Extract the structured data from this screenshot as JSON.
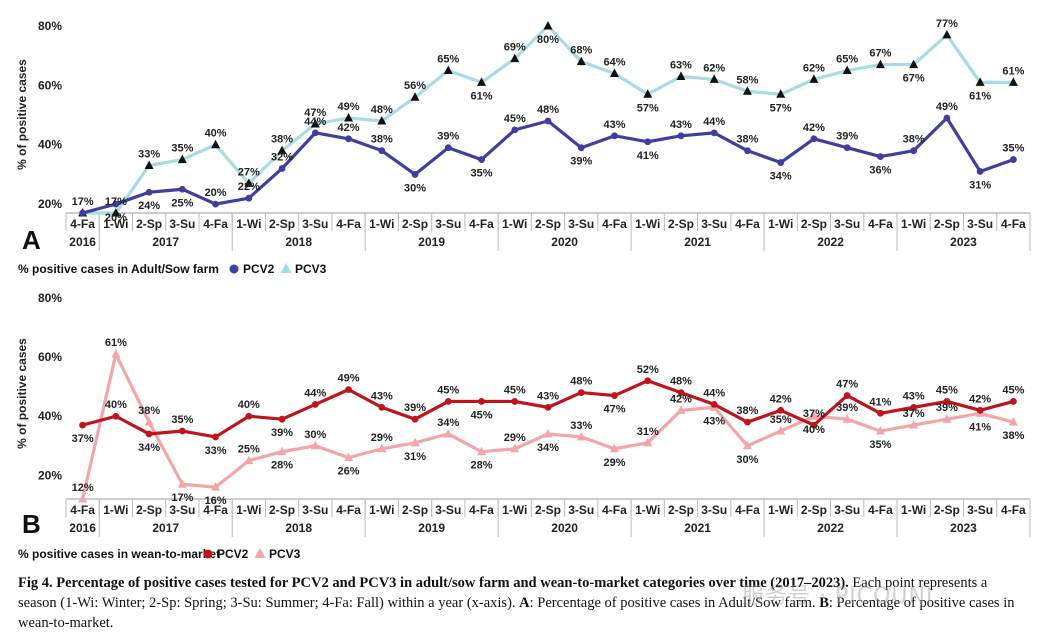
{
  "chart_data": [
    {
      "type": "line",
      "panel_label": "A",
      "title": "% positive cases in Adult/Sow farm",
      "ylabel": "% of positive cases",
      "ylim": [
        17,
        80
      ],
      "yticks": [
        "20%",
        "40%",
        "60%",
        "80%"
      ],
      "ytick_values": [
        20,
        40,
        60,
        80
      ],
      "categories": [
        "4-Fa",
        "1-Wi",
        "2-Sp",
        "3-Su",
        "4-Fa",
        "1-Wi",
        "2-Sp",
        "3-Su",
        "4-Fa",
        "1-Wi",
        "2-Sp",
        "3-Su",
        "4-Fa",
        "1-Wi",
        "2-Sp",
        "3-Su",
        "4-Fa",
        "1-Wi",
        "2-Sp",
        "3-Su",
        "4-Fa",
        "1-Wi",
        "2-Sp",
        "3-Su",
        "4-Fa",
        "1-Wi",
        "2-Sp",
        "3-Su",
        "4-Fa"
      ],
      "years": [
        {
          "label": "2016",
          "from": 0,
          "to": 0
        },
        {
          "label": "2017",
          "from": 1,
          "to": 4
        },
        {
          "label": "2018",
          "from": 5,
          "to": 8
        },
        {
          "label": "2019",
          "from": 9,
          "to": 12
        },
        {
          "label": "2020",
          "from": 13,
          "to": 16
        },
        {
          "label": "2021",
          "from": 17,
          "to": 20
        },
        {
          "label": "2022",
          "from": 21,
          "to": 24
        },
        {
          "label": "2023",
          "from": 25,
          "to": 28
        }
      ],
      "series": [
        {
          "name": "PCV2",
          "color": "#3f3f9e",
          "marker": "circle",
          "values": [
            17,
            20,
            24,
            25,
            20,
            22,
            32,
            44,
            42,
            38,
            30,
            39,
            35,
            45,
            48,
            39,
            43,
            41,
            43,
            44,
            38,
            34,
            42,
            39,
            36,
            38,
            49,
            31,
            35
          ],
          "labels": [
            "17%",
            "20%",
            "24%",
            "25%",
            "20%",
            "22%",
            "32%",
            "44%",
            "42%",
            "38%",
            "30%",
            "39%",
            "35%",
            "45%",
            "48%",
            "39%",
            "43%",
            "41%",
            "43%",
            "44%",
            "38%",
            "34%",
            "42%",
            "39%",
            "36%",
            "38%",
            "49%",
            "31%",
            "35%"
          ],
          "label_pos": [
            "up",
            "down",
            "down",
            "down",
            "up",
            "up",
            "up",
            "up",
            "up",
            "up",
            "down",
            "up",
            "down",
            "up",
            "up",
            "down",
            "up",
            "down",
            "up",
            "up",
            "up",
            "down",
            "up",
            "up",
            "down",
            "up",
            "up",
            "down",
            "up"
          ]
        },
        {
          "name": "PCV3",
          "color": "#a8dbe8",
          "marker": "triangle",
          "values": [
            17,
            17,
            33,
            35,
            40,
            27,
            38,
            47,
            49,
            48,
            56,
            65,
            61,
            69,
            80,
            68,
            64,
            57,
            63,
            62,
            58,
            57,
            62,
            65,
            67,
            67,
            77,
            61,
            61
          ],
          "labels": [
            "",
            "17%",
            "33%",
            "35%",
            "40%",
            "27%",
            "38%",
            "47%",
            "49%",
            "48%",
            "56%",
            "65%",
            "61%",
            "69%",
            "80%",
            "68%",
            "64%",
            "57%",
            "63%",
            "62%",
            "58%",
            "57%",
            "62%",
            "65%",
            "67%",
            "67%",
            "77%",
            "61%",
            "61%"
          ],
          "label_pos": [
            "up",
            "up",
            "up",
            "up",
            "up",
            "up",
            "up",
            "up",
            "up",
            "up",
            "up",
            "up",
            "down",
            "up",
            "down",
            "up",
            "up",
            "down",
            "up",
            "up",
            "up",
            "down",
            "up",
            "up",
            "up",
            "down",
            "up",
            "down",
            "up"
          ]
        }
      ]
    },
    {
      "type": "line",
      "panel_label": "B",
      "title": "% positive cases in wean-to-market",
      "ylabel": "% of positive cases",
      "ylim": [
        12,
        80
      ],
      "yticks": [
        "20%",
        "40%",
        "60%",
        "80%"
      ],
      "ytick_values": [
        20,
        40,
        60,
        80
      ],
      "categories": [
        "4-Fa",
        "1-Wi",
        "2-Sp",
        "3-Su",
        "4-Fa",
        "1-Wi",
        "2-Sp",
        "3-Su",
        "4-Fa",
        "1-Wi",
        "2-Sp",
        "3-Su",
        "4-Fa",
        "1-Wi",
        "2-Sp",
        "3-Su",
        "4-Fa",
        "1-Wi",
        "2-Sp",
        "3-Su",
        "4-Fa",
        "1-Wi",
        "2-Sp",
        "3-Su",
        "4-Fa",
        "1-Wi",
        "2-Sp",
        "3-Su",
        "4-Fa"
      ],
      "years": [
        {
          "label": "2016",
          "from": 0,
          "to": 0
        },
        {
          "label": "2017",
          "from": 1,
          "to": 4
        },
        {
          "label": "2018",
          "from": 5,
          "to": 8
        },
        {
          "label": "2019",
          "from": 9,
          "to": 12
        },
        {
          "label": "2020",
          "from": 13,
          "to": 16
        },
        {
          "label": "2021",
          "from": 17,
          "to": 20
        },
        {
          "label": "2022",
          "from": 21,
          "to": 24
        },
        {
          "label": "2023",
          "from": 25,
          "to": 28
        }
      ],
      "series": [
        {
          "name": "PCV2",
          "color": "#c0141c",
          "marker": "circle",
          "values": [
            37,
            40,
            34,
            35,
            33,
            40,
            39,
            44,
            49,
            43,
            39,
            45,
            45,
            45,
            43,
            48,
            47,
            52,
            48,
            44,
            38,
            42,
            37,
            47,
            41,
            43,
            45,
            42,
            45
          ],
          "labels": [
            "37%",
            "40%",
            "34%",
            "35%",
            "33%",
            "40%",
            "39%",
            "44%",
            "49%",
            "43%",
            "39%",
            "45%",
            "45%",
            "45%",
            "43%",
            "48%",
            "47%",
            "52%",
            "48%",
            "44%",
            "38%",
            "42%",
            "37%",
            "47%",
            "41%",
            "43%",
            "45%",
            "42%",
            "45%"
          ],
          "label_pos": [
            "down",
            "up",
            "down",
            "up",
            "down",
            "up",
            "down",
            "up",
            "up",
            "up",
            "up",
            "up",
            "down",
            "up",
            "up",
            "up",
            "down",
            "up",
            "up",
            "up",
            "up",
            "up",
            "up",
            "up",
            "up",
            "up",
            "up",
            "up",
            "up"
          ]
        },
        {
          "name": "PCV3",
          "color": "#f2a6a8",
          "marker": "triangle",
          "values": [
            12,
            61,
            38,
            17,
            16,
            25,
            28,
            30,
            26,
            29,
            31,
            34,
            28,
            29,
            34,
            33,
            29,
            31,
            42,
            43,
            30,
            35,
            40,
            39,
            35,
            37,
            39,
            41,
            38
          ],
          "labels": [
            "12%",
            "61%",
            "38%",
            "17%",
            "16%",
            "25%",
            "28%",
            "30%",
            "26%",
            "29%",
            "31%",
            "34%",
            "28%",
            "29%",
            "34%",
            "33%",
            "29%",
            "31%",
            "42%",
            "43%",
            "30%",
            "35%",
            "40%",
            "39%",
            "35%",
            "37%",
            "39%",
            "41%",
            "38%"
          ],
          "label_pos": [
            "up",
            "up",
            "up",
            "down",
            "down",
            "up",
            "down",
            "up",
            "down",
            "up",
            "down",
            "up",
            "down",
            "up",
            "down",
            "up",
            "down",
            "up",
            "up",
            "down",
            "down",
            "up",
            "down",
            "up",
            "down",
            "up",
            "up",
            "down",
            "down"
          ]
        }
      ]
    }
  ],
  "caption": {
    "fig_label": "Fig 4.",
    "title": "Percentage of positive cases tested for PCV2 and PCV3 in adult/sow farm and wean-to-market categories over time (2017–2023).",
    "body_1": " Each point represents a season (1-Wi: Winter; 2-Sp: Spring; 3-Su: Summer; 4-Fa: Fall) within a year (x-axis). ",
    "a_key": "A",
    "a_text": ": Percentage of positive cases in Adult/Sow farm. ",
    "b_key": "B",
    "b_text": ": Percentage of positive cases in wean-to-market."
  },
  "watermark": "服务号 · PICOUNI"
}
